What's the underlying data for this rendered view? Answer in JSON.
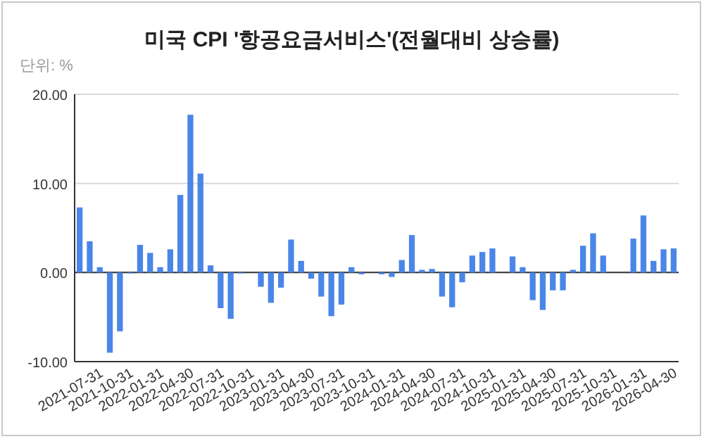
{
  "chart_data": {
    "type": "bar",
    "title": "미국 CPI '항공요금서비스'(전월대비 상승률)",
    "ylabel": "단위: %",
    "categories": [
      null,
      null,
      "2021-07-31",
      null,
      null,
      "2021-10-31",
      null,
      null,
      "2022-01-31",
      null,
      null,
      "2022-04-30",
      null,
      null,
      "2022-07-31",
      null,
      null,
      "2022-10-31",
      null,
      null,
      "2023-01-31",
      null,
      null,
      "2023-04-30",
      null,
      null,
      "2023-07-31",
      null,
      null,
      "2023-10-31",
      null,
      null,
      "2024-01-31",
      null,
      null,
      "2024-04-30",
      null,
      null,
      "2024-07-31",
      null,
      null,
      "2024-10-31",
      null,
      null,
      "2025-01-31",
      null,
      null,
      "2025-04-30",
      null,
      null,
      "2025-07-31",
      null,
      null,
      "2025-10-31",
      null,
      null,
      "2026-01-31",
      null,
      null,
      "2026-04-30"
    ],
    "values": [
      7.3,
      3.5,
      0.6,
      -9.0,
      -6.6,
      -0.1,
      3.1,
      2.2,
      0.6,
      2.6,
      8.7,
      17.7,
      11.1,
      0.8,
      -4.0,
      -5.2,
      -0.1,
      null,
      -1.6,
      -3.4,
      -1.7,
      3.7,
      1.3,
      -0.7,
      -2.7,
      -4.9,
      -3.6,
      0.6,
      -0.2,
      null,
      -0.2,
      -0.5,
      1.4,
      4.2,
      0.3,
      0.4,
      -2.7,
      -3.9,
      -1.1,
      1.9,
      2.3,
      2.7,
      null,
      1.8,
      0.6,
      -3.1,
      -4.2,
      -2.0,
      -2.0,
      0.3,
      3.0,
      4.4,
      1.9,
      null,
      null,
      3.8,
      6.4,
      1.3,
      2.6,
      2.7
    ],
    "color": "#4a86e8",
    "ylim": [
      -10,
      20
    ],
    "yticks": [
      {
        "value": -10,
        "label": "-10.00"
      },
      {
        "value": 0,
        "label": "0.00"
      },
      {
        "value": 10,
        "label": "10.00"
      },
      {
        "value": 20,
        "label": "20.00"
      }
    ],
    "grid": "y"
  }
}
